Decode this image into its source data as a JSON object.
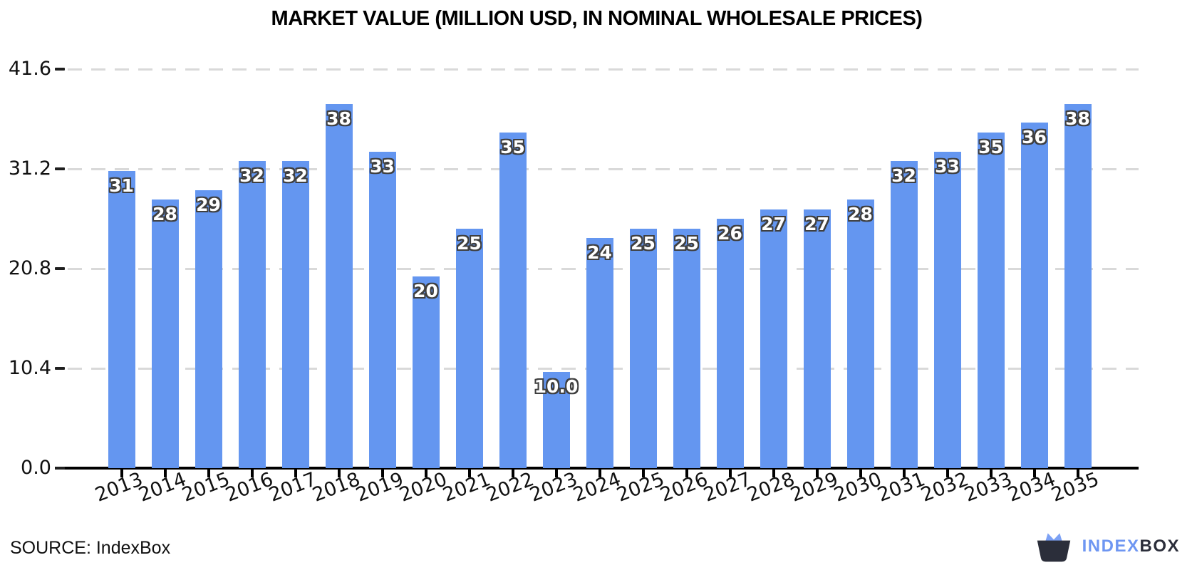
{
  "source": "SOURCE: IndexBox",
  "logo": {
    "brand_primary": "INDEX",
    "brand_secondary": "BOX"
  },
  "chart_data": {
    "type": "bar",
    "title": "MARKET VALUE (MILLION USD, IN NOMINAL WHOLESALE PRICES)",
    "categories": [
      "2013",
      "2014",
      "2015",
      "2016",
      "2017",
      "2018",
      "2019",
      "2020",
      "2021",
      "2022",
      "2023",
      "2024",
      "2025",
      "2026",
      "2027",
      "2028",
      "2029",
      "2030",
      "2031",
      "2032",
      "2033",
      "2034",
      "2035"
    ],
    "values": [
      31,
      28,
      29,
      32,
      32,
      38,
      33,
      20,
      25,
      35,
      10,
      24,
      25,
      25,
      26,
      27,
      27,
      28,
      32,
      33,
      35,
      36,
      38
    ],
    "bar_labels": [
      "31",
      "28",
      "29",
      "32",
      "32",
      "38",
      "33",
      "20",
      "25",
      "35",
      "10.0",
      "24",
      "25",
      "25",
      "26",
      "27",
      "27",
      "28",
      "32",
      "33",
      "35",
      "36",
      "38"
    ],
    "xlabel": "",
    "ylabel": "",
    "yticks": [
      0.0,
      10.4,
      20.8,
      31.2,
      41.6
    ],
    "ylim": [
      0,
      44
    ],
    "grid": "horizontal-dashed",
    "legend": "none",
    "bar_color": "#6496F0",
    "value_label_style": "white-with-dark-outline"
  }
}
